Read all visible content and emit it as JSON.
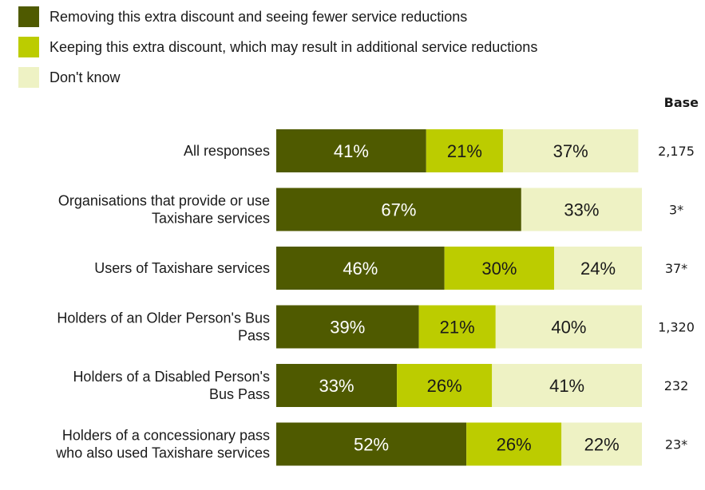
{
  "chart_data": {
    "type": "bar",
    "orientation": "horizontal",
    "stacked": true,
    "categories": [
      [
        "All responses"
      ],
      [
        "Organisations that provide or use",
        "Taxishare services"
      ],
      [
        "Users of Taxishare services"
      ],
      [
        "Holders of an Older Person's Bus",
        "Pass"
      ],
      [
        "Holders of a Disabled Person's",
        "Bus Pass"
      ],
      [
        "Holders of a concessionary pass",
        "who also used Taxishare services"
      ]
    ],
    "series": [
      {
        "name": "Removing this extra discount and seeing fewer service reductions",
        "color": "#4f5a00",
        "text_color": "#ffffff",
        "values": [
          41,
          67,
          46,
          39,
          33,
          52
        ],
        "labels": [
          "41%",
          "67%",
          "46%",
          "39%",
          "33%",
          "52%"
        ]
      },
      {
        "name": "Keeping this extra discount, which may result in additional service reductions",
        "color": "#bccc00",
        "text_color": "#1a1a1a",
        "values": [
          21,
          0,
          30,
          21,
          26,
          26
        ],
        "labels": [
          "21%",
          "",
          "30%",
          "21%",
          "26%",
          "26%"
        ]
      },
      {
        "name": "Don't know",
        "color": "#eef2c4",
        "text_color": "#1a1a1a",
        "values": [
          37,
          33,
          24,
          40,
          41,
          22
        ],
        "labels": [
          "37%",
          "33%",
          "24%",
          "40%",
          "41%",
          "22%"
        ]
      }
    ],
    "base_header": "Base",
    "base_values": [
      "2,175",
      "3*",
      "37*",
      "1,320",
      "232",
      "23*"
    ],
    "legend_position": "top-left",
    "xlim": [
      0,
      100
    ],
    "grid": false
  }
}
